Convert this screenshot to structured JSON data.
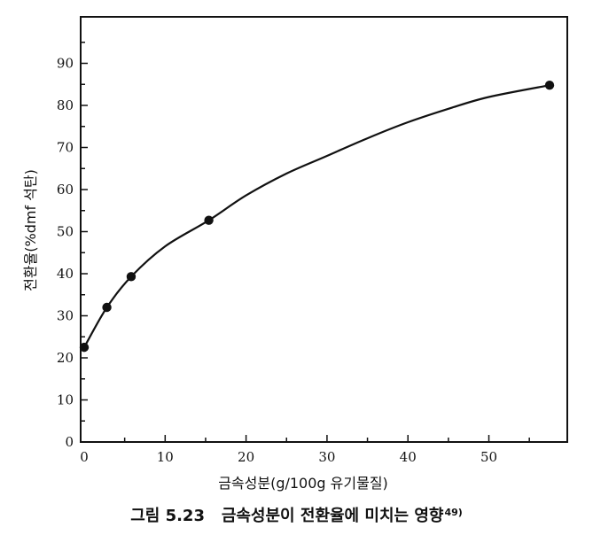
{
  "chart_data": {
    "type": "scatter",
    "xlabel": "금속성분(g/100g 유기물질)",
    "ylabel": "전환율(%dmf 석탄)",
    "xlim": [
      0,
      58
    ],
    "ylim": [
      0,
      100
    ],
    "xticks": [
      0,
      10,
      20,
      30,
      40,
      50
    ],
    "yticks": [
      0,
      10,
      20,
      30,
      40,
      50,
      60,
      70,
      80,
      90
    ],
    "grid": false,
    "points": {
      "x": [
        0,
        2.8,
        5.8,
        15.4,
        57.5
      ],
      "y": [
        22.5,
        32,
        39.3,
        52.7,
        84.8
      ]
    },
    "curve": {
      "x": [
        0,
        2.8,
        5.8,
        10,
        15.4,
        20,
        25,
        30,
        35,
        40,
        45,
        50,
        57.5
      ],
      "y": [
        22.5,
        32,
        39.3,
        46.5,
        52.7,
        58.6,
        63.8,
        68.0,
        72.2,
        76.0,
        79.2,
        82.0,
        84.8
      ]
    }
  },
  "caption": {
    "figure_number": "그림 5.23",
    "text": "금속성분이 전환율에 미치는 영향",
    "reference": "49)"
  }
}
